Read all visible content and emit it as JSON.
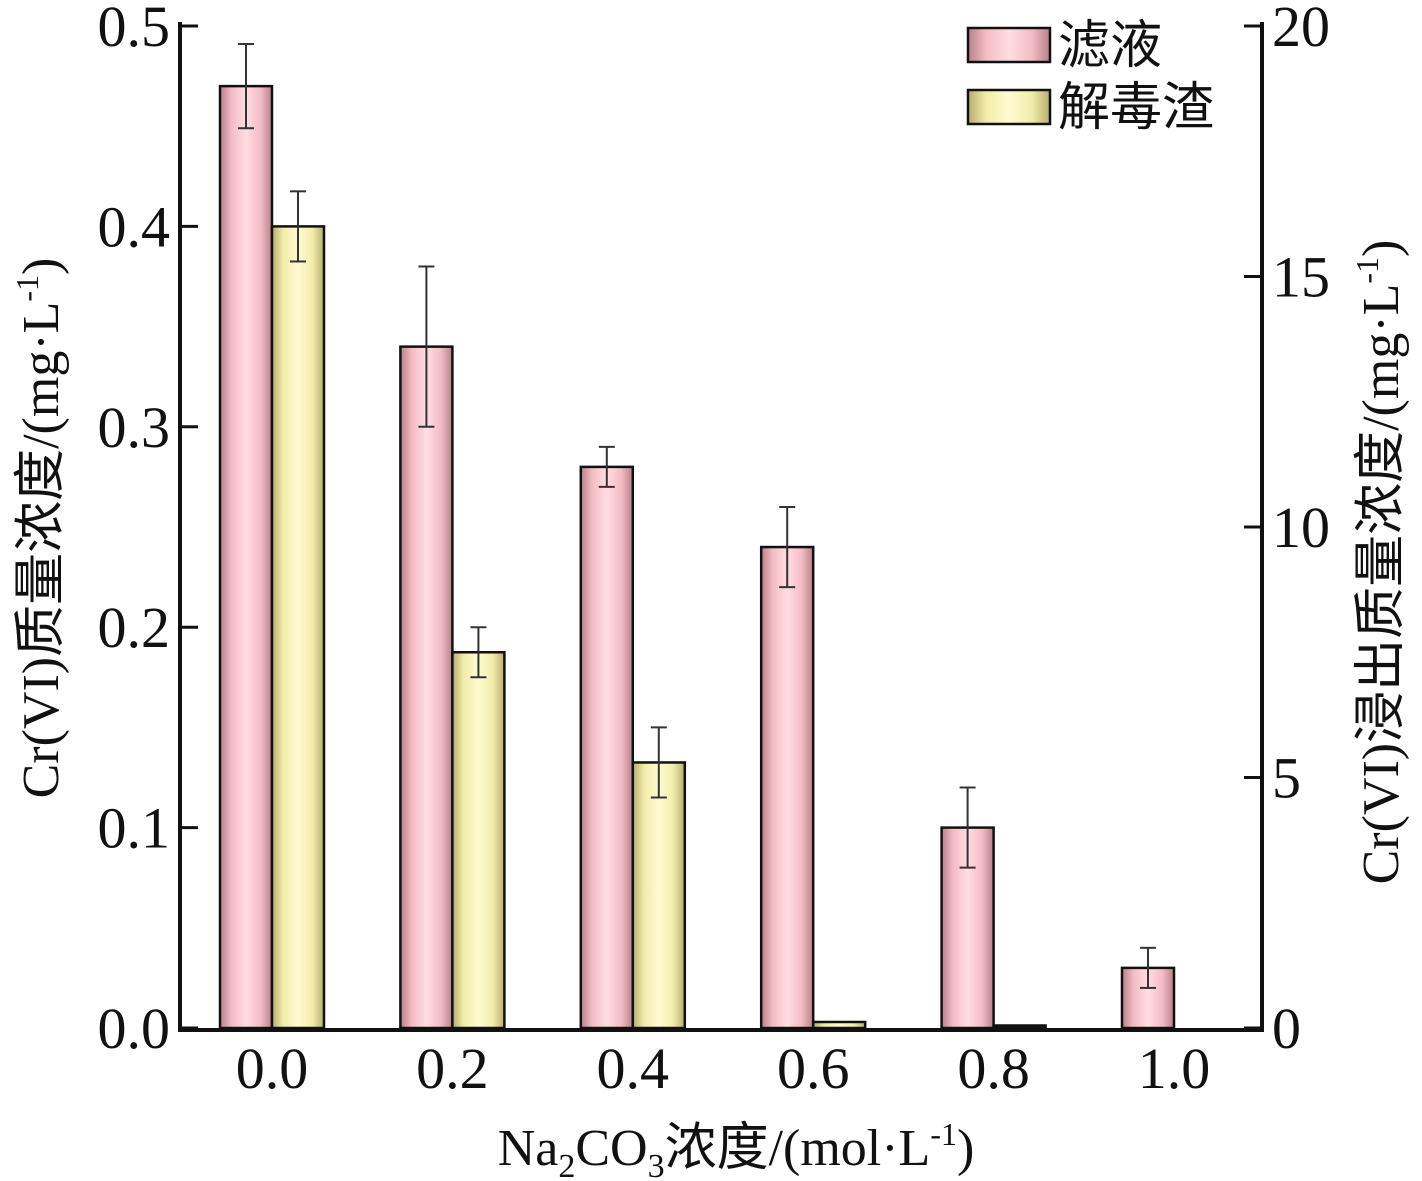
{
  "chart_data": {
    "type": "bar",
    "categories": [
      "0.0",
      "0.2",
      "0.4",
      "0.6",
      "0.8",
      "1.0"
    ],
    "series": [
      {
        "name": "滤液",
        "axis": "left",
        "values": [
          0.47,
          0.34,
          0.28,
          0.24,
          0.1,
          0.03
        ],
        "errors": [
          0.021,
          0.04,
          0.01,
          0.02,
          0.02,
          0.01
        ],
        "color": "#f5c2ca"
      },
      {
        "name": "解毒渣",
        "axis": "right",
        "values": [
          16.0,
          7.5,
          5.3,
          0.12,
          0.05,
          0.0
        ],
        "errors": [
          0.7,
          0.5,
          0.7,
          0.0,
          0.0,
          0.0
        ],
        "color": "#f7f2b4"
      }
    ],
    "xlabel": {
      "prefix": "Na",
      "sub1": "2",
      "mid": "CO",
      "sub2": "3",
      "suffix": "浓度/(mol·L",
      "sup": "-1",
      "end": ")"
    },
    "ylabel_left": {
      "main": "Cr(VI)质量浓度/(mg·L",
      "sup": "-1",
      "end": ")"
    },
    "ylabel_right": {
      "main": "Cr(VI)浸出质量浓度/(mg·L",
      "sup": "-1",
      "end": ")"
    },
    "ylim_left": [
      0,
      0.5
    ],
    "ylim_right": [
      0,
      20
    ],
    "yticks_left": [
      "0.0",
      "0.1",
      "0.2",
      "0.3",
      "0.4",
      "0.5"
    ],
    "yticks_right": [
      "0",
      "5",
      "10",
      "15",
      "20"
    ],
    "grid": false,
    "legend_position": "top-right"
  }
}
